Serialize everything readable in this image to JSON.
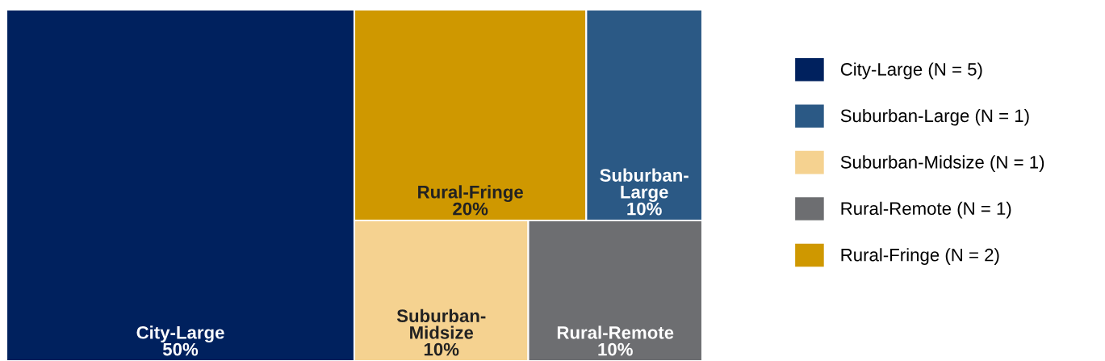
{
  "chart_data": {
    "type": "other",
    "categories": [
      "City-Large",
      "Suburban-Large",
      "Suburban-Midsize",
      "Rural-Remote",
      "Rural-Fringe"
    ],
    "colors": [
      "#00215e",
      "#2b5985",
      "#f5d290",
      "#6d6e71",
      "#cf9800"
    ],
    "series": [
      {
        "name": "City-Large (N = 5)",
        "color": "#00215e",
        "values": [
          50,
          null,
          null,
          null,
          null
        ],
        "value_labels": [
          "50%",
          null,
          null,
          null,
          null
        ]
      },
      {
        "name": "Suburban-Large (N = 1)",
        "color": "#2b5985",
        "values": [
          null,
          10,
          null,
          null,
          null
        ],
        "value_labels": [
          null,
          "10%",
          null,
          null,
          null
        ]
      },
      {
        "name": "Suburban-Midsize (N = 1)",
        "color": "#f5d290",
        "values": [
          null,
          null,
          10,
          null,
          null
        ],
        "value_labels": [
          null,
          null,
          "10%",
          null,
          null
        ]
      },
      {
        "name": "Rural-Remote (N = 1)",
        "color": "#6d6e71",
        "values": [
          null,
          null,
          null,
          10,
          null
        ],
        "value_labels": [
          null,
          null,
          null,
          "10%",
          null
        ]
      },
      {
        "name": "Rural-Fringe (N = 2)",
        "color": "#cf9800",
        "values": [
          null,
          null,
          null,
          null,
          20
        ],
        "value_labels": [
          null,
          null,
          null,
          null,
          "20%"
        ]
      }
    ],
    "legend": "right"
  }
}
